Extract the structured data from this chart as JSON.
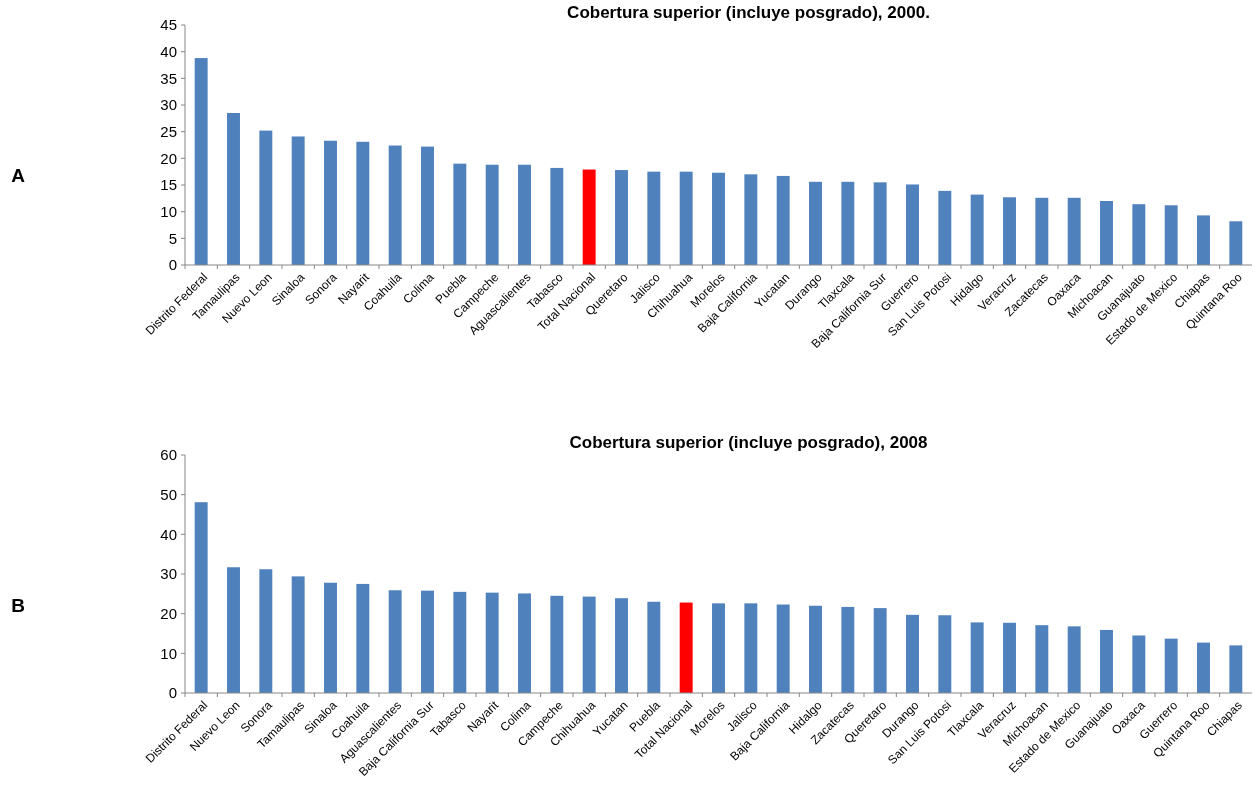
{
  "chart_data": [
    {
      "type": "bar",
      "title": "Cobertura superior (incluye posgrado), 2000.",
      "annotations": [
        "A"
      ],
      "categories": [
        "Distrito Federal",
        "Tamaulipas",
        "Nuevo Leon",
        "Sinaloa",
        "Sonora",
        "Nayarit",
        "Coahuila",
        "Colima",
        "Puebla",
        "Campeche",
        "Aguascalientes",
        "Tabasco",
        "Total Nacional",
        "Queretaro",
        "Jalisco",
        "Chihuahua",
        "Morelos",
        "Baja California",
        "Yucatan",
        "Durango",
        "Tlaxcala",
        "Baja California Sur",
        "Guerrero",
        "San Luis Potosi",
        "Hidalgo",
        "Veracruz",
        "Zacatecas",
        "Oaxaca",
        "Michoacan",
        "Guanajuato",
        "Estado de Mexico",
        "Chiapas",
        "Quintana Roo"
      ],
      "values": [
        38.8,
        28.5,
        25.2,
        24.1,
        23.3,
        23.1,
        22.4,
        22.2,
        19.0,
        18.8,
        18.8,
        18.2,
        17.9,
        17.8,
        17.5,
        17.5,
        17.3,
        17.0,
        16.7,
        15.6,
        15.6,
        15.5,
        15.1,
        13.9,
        13.2,
        12.7,
        12.6,
        12.6,
        12.0,
        11.4,
        11.2,
        9.3,
        8.2
      ],
      "colors": [
        "#4f81bd",
        "#4f81bd",
        "#4f81bd",
        "#4f81bd",
        "#4f81bd",
        "#4f81bd",
        "#4f81bd",
        "#4f81bd",
        "#4f81bd",
        "#4f81bd",
        "#4f81bd",
        "#4f81bd",
        "#ff0000",
        "#4f81bd",
        "#4f81bd",
        "#4f81bd",
        "#4f81bd",
        "#4f81bd",
        "#4f81bd",
        "#4f81bd",
        "#4f81bd",
        "#4f81bd",
        "#4f81bd",
        "#4f81bd",
        "#4f81bd",
        "#4f81bd",
        "#4f81bd",
        "#4f81bd",
        "#4f81bd",
        "#4f81bd",
        "#4f81bd",
        "#4f81bd",
        "#4f81bd"
      ],
      "ylim": [
        0,
        45
      ],
      "yticks": [
        0,
        5,
        10,
        15,
        20,
        25,
        30,
        35,
        40,
        45
      ]
    },
    {
      "type": "bar",
      "title": "Cobertura superior (incluye posgrado), 2008",
      "annotations": [
        "B"
      ],
      "categories": [
        "Distrito Federal",
        "Nuevo Leon",
        "Sonora",
        "Tamaulipas",
        "Sinaloa",
        "Coahuila",
        "Aguascalientes",
        "Baja California Sur",
        "Tabasco",
        "Nayarit",
        "Colima",
        "Campeche",
        "Chihuahua",
        "Yucatan",
        "Puebla",
        "Total Nacional",
        "Morelos",
        "Jalisco",
        "Baja California",
        "Hidalgo",
        "Zacatecas",
        "Queretaro",
        "Durango",
        "San Luis Potosi",
        "Tlaxcala",
        "Veracruz",
        "Michoacan",
        "Estado de Mexico",
        "Guanajuato",
        "Oaxaca",
        "Guerrero",
        "Quintana Roo",
        "Chiapas"
      ],
      "values": [
        48.1,
        31.7,
        31.2,
        29.4,
        27.8,
        27.5,
        25.9,
        25.8,
        25.5,
        25.3,
        25.1,
        24.5,
        24.3,
        23.9,
        23.0,
        22.8,
        22.6,
        22.6,
        22.3,
        22.0,
        21.7,
        21.4,
        19.7,
        19.6,
        17.8,
        17.7,
        17.1,
        16.8,
        15.9,
        14.5,
        13.7,
        12.7,
        12.0
      ],
      "colors": [
        "#4f81bd",
        "#4f81bd",
        "#4f81bd",
        "#4f81bd",
        "#4f81bd",
        "#4f81bd",
        "#4f81bd",
        "#4f81bd",
        "#4f81bd",
        "#4f81bd",
        "#4f81bd",
        "#4f81bd",
        "#4f81bd",
        "#4f81bd",
        "#4f81bd",
        "#ff0000",
        "#4f81bd",
        "#4f81bd",
        "#4f81bd",
        "#4f81bd",
        "#4f81bd",
        "#4f81bd",
        "#4f81bd",
        "#4f81bd",
        "#4f81bd",
        "#4f81bd",
        "#4f81bd",
        "#4f81bd",
        "#4f81bd",
        "#4f81bd",
        "#4f81bd",
        "#4f81bd",
        "#4f81bd"
      ],
      "ylim": [
        0,
        60
      ],
      "yticks": [
        0,
        10,
        20,
        30,
        40,
        50,
        60
      ]
    }
  ]
}
